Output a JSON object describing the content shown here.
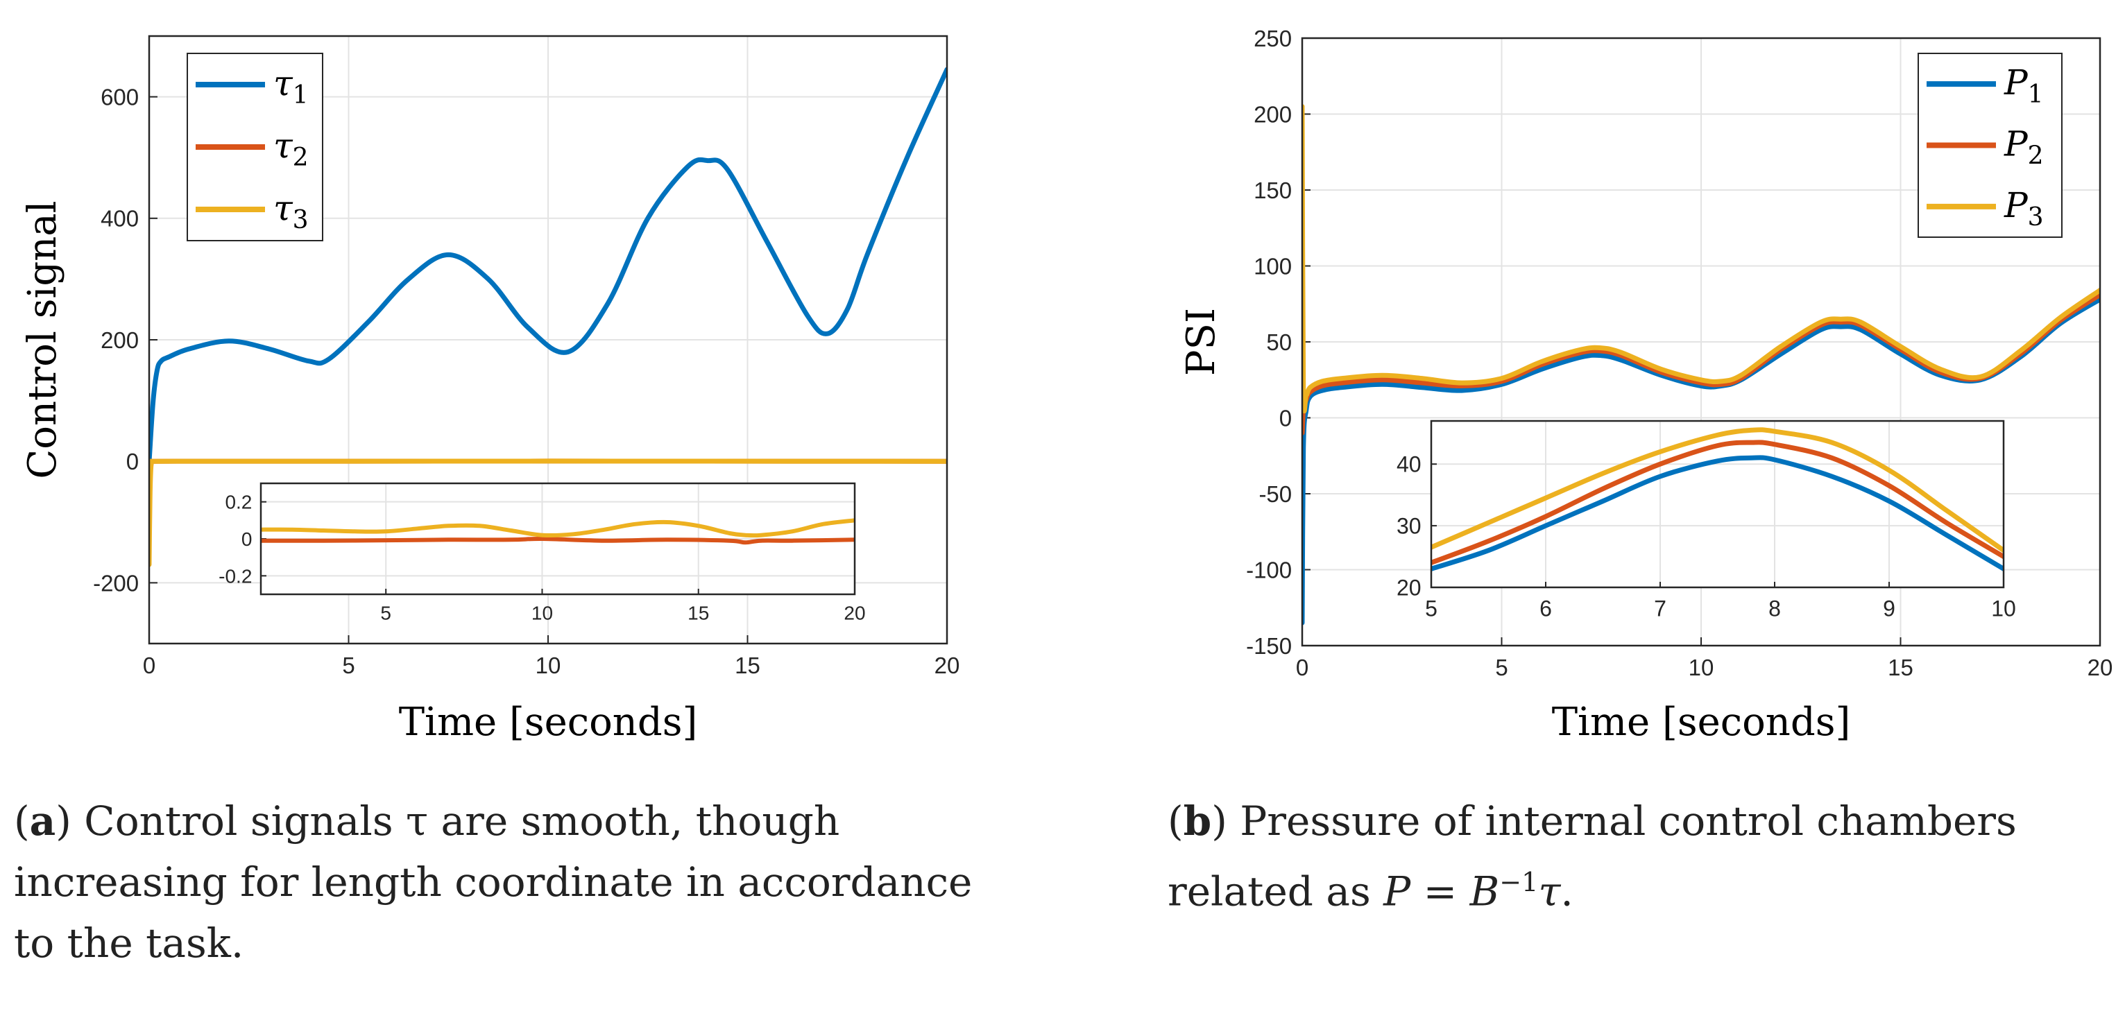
{
  "chart_data": [
    {
      "type": "line",
      "panel": "a",
      "xlabel": "Time [seconds]",
      "ylabel": "Control signal",
      "xlim": [
        0,
        20
      ],
      "ylim": [
        -300,
        700
      ],
      "xticks": [
        0,
        5,
        10,
        15,
        20
      ],
      "xtick_labels": [
        "0",
        "5",
        "10",
        "15",
        "20"
      ],
      "yticks": [
        -200,
        0,
        200,
        400,
        600
      ],
      "ytick_labels": [
        "-200",
        "0",
        "200",
        "400",
        "600"
      ],
      "grid": true,
      "legend": {
        "placement": "top-left",
        "entries": [
          "τ1",
          "τ2",
          "τ3"
        ],
        "base": "τ",
        "subscripts": [
          "1",
          "2",
          "3"
        ]
      },
      "colors": [
        "#0072BD",
        "#D95319",
        "#EDB120"
      ],
      "series": [
        {
          "name": "τ1",
          "x": [
            0,
            0.1,
            0.2,
            0.3,
            0.5,
            1.0,
            2.0,
            3.0,
            4.0,
            4.5,
            5.5,
            6.5,
            7.5,
            8.5,
            9.5,
            10.5,
            11.5,
            12.5,
            13.5,
            14.0,
            14.5,
            15.5,
            16.5,
            17.0,
            17.5,
            18.0,
            19.0,
            20.0
          ],
          "values": [
            0,
            100,
            150,
            165,
            172,
            185,
            198,
            185,
            165,
            168,
            230,
            300,
            340,
            300,
            220,
            180,
            260,
            400,
            485,
            495,
            480,
            360,
            240,
            210,
            250,
            340,
            500,
            645
          ]
        },
        {
          "name": "τ2",
          "x": [
            0,
            0.05,
            0.1,
            20
          ],
          "values": [
            0,
            -5,
            0,
            0
          ]
        },
        {
          "name": "τ3",
          "x": [
            0,
            0.02,
            0.05,
            0.1,
            20
          ],
          "values": [
            -170,
            -60,
            -5,
            0,
            0
          ]
        }
      ],
      "inset": {
        "xlim": [
          1,
          20
        ],
        "ylim": [
          -0.3,
          0.3
        ],
        "xticks": [
          5,
          10,
          15,
          20
        ],
        "xtick_labels": [
          "5",
          "10",
          "15",
          "20"
        ],
        "yticks": [
          -0.2,
          0,
          0.2
        ],
        "ytick_labels": [
          "-0.2",
          "0",
          "0.2"
        ],
        "series": [
          {
            "name": "τ2",
            "x": [
              1,
              3,
              5,
              7,
              9,
              10,
              12,
              14,
              16,
              16.5,
              17,
              18,
              20
            ],
            "values": [
              -0.01,
              -0.01,
              -0.008,
              -0.005,
              -0.005,
              0.0,
              -0.01,
              -0.005,
              -0.01,
              -0.02,
              -0.01,
              -0.01,
              -0.005
            ]
          },
          {
            "name": "τ3",
            "x": [
              1,
              2,
              3,
              4,
              5,
              6,
              7,
              8,
              9,
              10,
              11,
              12,
              13,
              14,
              15,
              16,
              16.5,
              17,
              18,
              19,
              20
            ],
            "values": [
              0.05,
              0.05,
              0.045,
              0.04,
              0.04,
              0.055,
              0.07,
              0.07,
              0.045,
              0.02,
              0.025,
              0.05,
              0.08,
              0.09,
              0.07,
              0.03,
              0.02,
              0.02,
              0.04,
              0.08,
              0.1
            ]
          }
        ]
      }
    },
    {
      "type": "line",
      "panel": "b",
      "xlabel": "Time [seconds]",
      "ylabel": "PSI",
      "xlim": [
        0,
        20
      ],
      "ylim": [
        -150,
        250
      ],
      "xticks": [
        0,
        5,
        10,
        15,
        20
      ],
      "xtick_labels": [
        "0",
        "5",
        "10",
        "15",
        "20"
      ],
      "yticks": [
        -150,
        -100,
        -50,
        0,
        50,
        100,
        150,
        200,
        250
      ],
      "ytick_labels": [
        "-150",
        "-100",
        "-50",
        "0",
        "50",
        "100",
        "150",
        "200",
        "250"
      ],
      "grid": true,
      "legend": {
        "placement": "top-right",
        "entries": [
          "P1",
          "P2",
          "P3"
        ],
        "base": "P",
        "subscripts": [
          "1",
          "2",
          "3"
        ]
      },
      "colors": [
        "#0072BD",
        "#D95319",
        "#EDB120"
      ],
      "series": [
        {
          "name": "P1",
          "x": [
            0,
            0.03,
            0.1,
            0.2,
            0.5,
            1,
            2,
            3,
            4,
            5,
            6,
            7,
            7.5,
            8,
            9,
            10,
            10.5,
            11,
            12,
            13,
            13.5,
            14,
            15,
            16,
            17,
            18,
            19,
            20
          ],
          "values": [
            -135,
            -20,
            5,
            14,
            18,
            20,
            22,
            20,
            18,
            22,
            32,
            40,
            41,
            38,
            28,
            21,
            21,
            25,
            42,
            58,
            60,
            58,
            42,
            28,
            25,
            40,
            62,
            78
          ]
        },
        {
          "name": "P2",
          "x": [
            0,
            0.03,
            0.1,
            0.2,
            0.5,
            1,
            2,
            3,
            4,
            5,
            6,
            7,
            7.5,
            8,
            9,
            10,
            10.5,
            11,
            12,
            13,
            13.5,
            14,
            15,
            16,
            17,
            18,
            19,
            20
          ],
          "values": [
            -10,
            5,
            12,
            17,
            21,
            23,
            25,
            23,
            21,
            24,
            35,
            43,
            44,
            41,
            30,
            23,
            22,
            26,
            45,
            61,
            63,
            61,
            45,
            30,
            26,
            42,
            64,
            81
          ]
        },
        {
          "name": "P3",
          "x": [
            0,
            0.03,
            0.1,
            0.2,
            0.5,
            1,
            2,
            3,
            4,
            5,
            6,
            7,
            7.5,
            8,
            9,
            10,
            10.5,
            11,
            12,
            13,
            13.5,
            14,
            15,
            16,
            17,
            18,
            19,
            20
          ],
          "values": [
            205,
            20,
            15,
            20,
            24,
            26,
            28,
            26,
            23,
            26,
            37,
            45,
            46,
            43,
            32,
            25,
            24,
            28,
            47,
            63,
            65,
            63,
            47,
            32,
            27,
            44,
            66,
            84
          ]
        }
      ],
      "inset": {
        "xlim": [
          5,
          10
        ],
        "ylim": [
          20,
          47
        ],
        "xticks": [
          5,
          6,
          7,
          8,
          9,
          10
        ],
        "xtick_labels": [
          "5",
          "6",
          "7",
          "8",
          "9",
          "10"
        ],
        "yticks": [
          20,
          30,
          40
        ],
        "ytick_labels": [
          "20",
          "30",
          "40"
        ],
        "series": [
          {
            "name": "P1",
            "x": [
              5,
              5.5,
              6,
              6.5,
              7,
              7.5,
              7.8,
              8,
              8.5,
              9,
              9.5,
              10
            ],
            "values": [
              23,
              26,
              30,
              34,
              38,
              40.5,
              41,
              40.7,
              38,
              34,
              28.5,
              23
            ]
          },
          {
            "name": "P2",
            "x": [
              5,
              5.5,
              6,
              6.5,
              7,
              7.5,
              7.8,
              8,
              8.5,
              9,
              9.5,
              10
            ],
            "values": [
              24,
              27.5,
              31.5,
              36,
              40,
              43,
              43.5,
              43.2,
              41,
              36.5,
              30.5,
              25
            ]
          },
          {
            "name": "P3",
            "x": [
              5,
              5.5,
              6,
              6.5,
              7,
              7.5,
              7.8,
              8,
              8.5,
              9,
              9.5,
              10
            ],
            "values": [
              26.5,
              30.5,
              34.5,
              38.5,
              42,
              44.7,
              45.5,
              45.3,
              43.5,
              39,
              32.5,
              26
            ]
          }
        ]
      }
    }
  ],
  "captions": {
    "a": {
      "label": "a",
      "text": " Control signals τ are smooth, though increasing for length coordinate in accordance to the task."
    },
    "b": {
      "label": "b",
      "text_pre": " Pressure of internal control chambers related as ",
      "math_lhs": "P",
      "math_mid": " = B",
      "math_sup": "−1",
      "math_rhs": "τ",
      "text_post": "."
    }
  }
}
